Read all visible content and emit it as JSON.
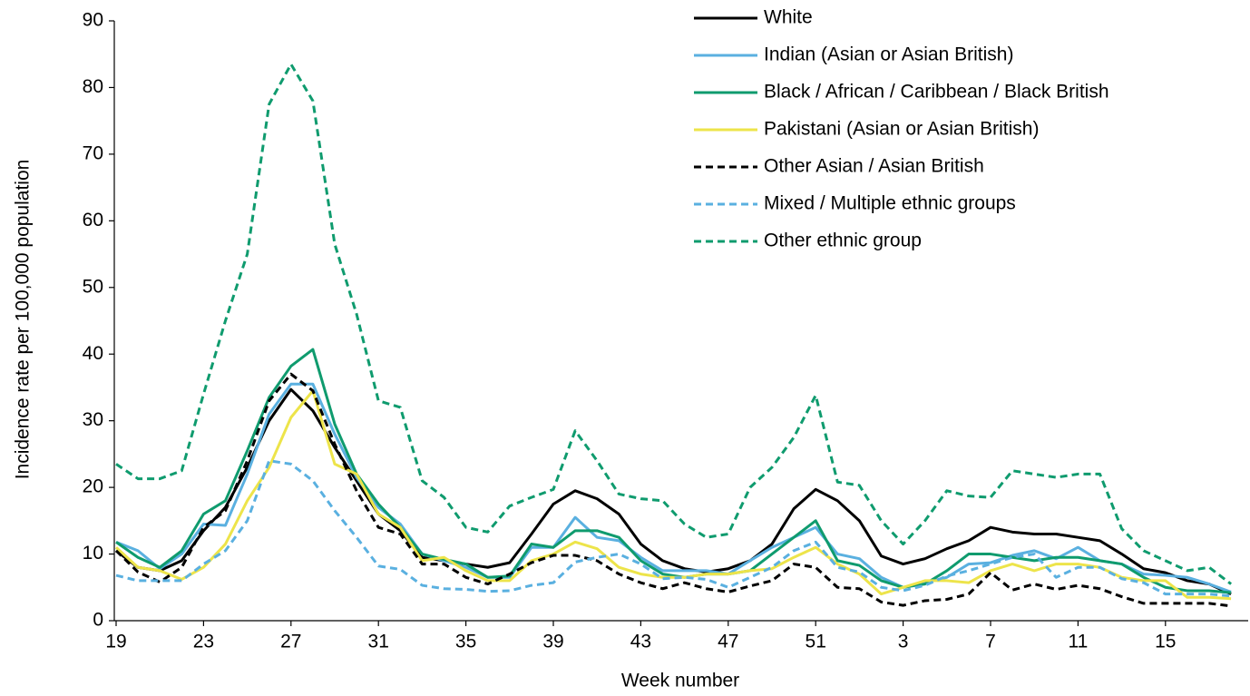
{
  "chart_data": {
    "type": "line",
    "x_label": "Week number",
    "y_label": "Incidence rate per 100,000 population",
    "categories": [
      "19",
      null,
      null,
      null,
      "23",
      null,
      null,
      null,
      "27",
      null,
      null,
      null,
      "31",
      null,
      null,
      null,
      "35",
      null,
      null,
      null,
      "39",
      null,
      null,
      null,
      "43",
      null,
      null,
      null,
      "47",
      null,
      null,
      null,
      "51",
      null,
      null,
      null,
      "3",
      null,
      null,
      null,
      "7",
      null,
      null,
      null,
      "11",
      null,
      null,
      null,
      "15",
      null,
      null,
      null
    ],
    "ylim": [
      0,
      90
    ],
    "yticks": [
      0,
      10,
      20,
      30,
      40,
      50,
      60,
      70,
      80,
      90
    ],
    "grid": false,
    "legend": "upper right",
    "series": [
      {
        "name": "White",
        "color": "#000000",
        "dashed": false,
        "values": [
          10.5,
          8,
          7.5,
          9,
          13.5,
          17,
          23,
          30,
          34.7,
          31.5,
          26,
          21,
          16,
          13.5,
          9.5,
          9,
          8.5,
          8,
          8.7,
          13,
          17.5,
          19.5,
          18.3,
          16,
          11.5,
          9,
          7.8,
          7.3,
          7.8,
          9,
          11.5,
          16.8,
          19.7,
          18,
          15,
          9.7,
          8.5,
          9.3,
          10.8,
          12,
          14,
          13.3,
          13,
          13,
          12.5,
          12,
          10,
          7.8,
          7.2,
          6,
          5.5,
          4
        ]
      },
      {
        "name": "Indian (Asian or Asian British)",
        "color": "#5ab0e0",
        "dashed": false,
        "values": [
          11.8,
          10.5,
          7.8,
          10,
          14.5,
          14.3,
          22,
          31,
          35.5,
          35.5,
          28,
          21.5,
          17,
          14.5,
          10,
          9,
          8,
          6.5,
          6.5,
          11,
          11,
          15.5,
          12.5,
          12,
          9.5,
          7.5,
          7.5,
          7.5,
          7,
          9,
          11,
          12.5,
          14,
          10,
          9.3,
          6.5,
          5,
          5.7,
          6.5,
          8.5,
          8.7,
          9.8,
          10.5,
          9.3,
          11,
          9,
          8.5,
          7,
          6.8,
          6.5,
          5.5,
          4.3
        ]
      },
      {
        "name": "Black / African / Caribbean / Black British",
        "color": "#0f9b6e",
        "dashed": false,
        "values": [
          11.8,
          9.5,
          8,
          10.5,
          16,
          18,
          25.5,
          33.5,
          38.2,
          40.7,
          29.5,
          22,
          17.5,
          14,
          10,
          9.2,
          8.5,
          6.5,
          6.7,
          11.5,
          11,
          13.5,
          13.5,
          12.5,
          9,
          7,
          6.5,
          7,
          7,
          7.5,
          10,
          12.5,
          15,
          9,
          8.3,
          6,
          5,
          5.5,
          7.5,
          10,
          10,
          9.5,
          9,
          9.5,
          9.5,
          9,
          8.5,
          6.5,
          5,
          4.5,
          4.5,
          4.2
        ]
      },
      {
        "name": "Pakistani (Asian or Asian British)",
        "color": "#ede44a",
        "dashed": false,
        "values": [
          11,
          8,
          7.5,
          6.2,
          8,
          11.5,
          18,
          23,
          30.5,
          34.5,
          23.5,
          22,
          16,
          14,
          9,
          9.5,
          7.5,
          6,
          6,
          9,
          10,
          11.8,
          10.8,
          8,
          7,
          6.5,
          6.5,
          7,
          7,
          7.5,
          7.8,
          9.5,
          11,
          8.5,
          7,
          4,
          5,
          6,
          6,
          5.7,
          7.5,
          8.5,
          7.5,
          8.5,
          8.5,
          8,
          6.5,
          6,
          6,
          3.5,
          3.5,
          3.3
        ]
      },
      {
        "name": "Other Asian / Asian British",
        "color": "#000000",
        "dashed": true,
        "values": [
          10.5,
          7.3,
          5.8,
          8,
          14,
          16.5,
          24,
          33,
          37,
          34.5,
          26.5,
          19.5,
          14,
          13,
          8.5,
          8.5,
          6.5,
          5.5,
          7,
          8.7,
          9.8,
          9.8,
          9,
          7,
          5.7,
          4.8,
          5.7,
          4.8,
          4.3,
          5.2,
          6,
          8.5,
          8,
          5,
          4.8,
          2.8,
          2.3,
          3,
          3.2,
          4,
          7.2,
          4.6,
          5.5,
          4.7,
          5.3,
          4.8,
          3.6,
          2.6,
          2.6,
          2.6,
          2.6,
          2.2
        ]
      },
      {
        "name": "Mixed / Multiple ethnic groups",
        "color": "#5ab0e0",
        "dashed": true,
        "values": [
          6.8,
          6,
          6,
          6,
          8.5,
          10.5,
          15,
          24,
          23.5,
          21,
          16.5,
          12.5,
          8.2,
          7.7,
          5.3,
          4.8,
          4.7,
          4.4,
          4.5,
          5.3,
          5.7,
          8.8,
          9.5,
          10,
          8.5,
          6.3,
          6.5,
          6.2,
          5,
          6.5,
          8,
          10.5,
          11.8,
          8,
          7.3,
          5,
          4.5,
          5.3,
          6.7,
          7.5,
          8.5,
          9.5,
          10,
          6.5,
          8,
          8,
          6.3,
          5.7,
          4,
          4,
          4,
          3.7
        ]
      },
      {
        "name": "Other ethnic group",
        "color": "#0f9b6e",
        "dashed": true,
        "values": [
          23.5,
          21.3,
          21.3,
          22.5,
          34,
          45,
          55,
          77.5,
          83.5,
          78,
          56.5,
          46,
          33,
          32,
          21,
          18.5,
          14,
          13.3,
          17.2,
          18.5,
          19.7,
          28.5,
          24,
          19,
          18.3,
          18,
          14.5,
          12.5,
          13,
          20,
          23,
          27.5,
          33.8,
          20.8,
          20.3,
          15,
          11.5,
          15,
          19.5,
          18.7,
          18.5,
          22.5,
          22,
          21.5,
          22,
          22,
          13.8,
          10.5,
          9,
          7.5,
          8,
          5.5
        ]
      }
    ]
  }
}
